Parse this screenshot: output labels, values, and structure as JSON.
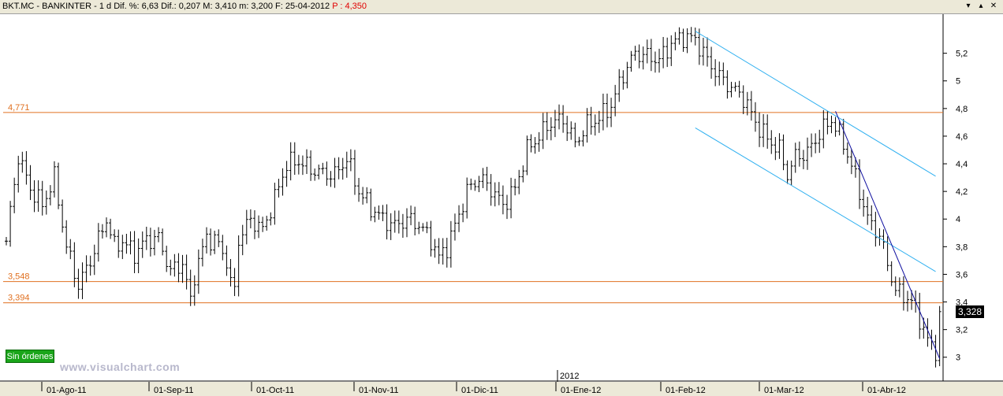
{
  "header": {
    "info": "BKT.MC - BANKINTER - 1 d Dif. %: 6,63 Dif.: 0,207 M: 3,410 m: 3,200 F: 25-04-2012",
    "price": "P : 4,350",
    "min_icon": "minimize-icon",
    "max_icon": "maximize-icon",
    "close_icon": "close-icon"
  },
  "badge": {
    "label": "Sin órdenes",
    "color": "#1aa51a"
  },
  "watermark": "www.visualchart.com",
  "chart_data": {
    "type": "ohlc",
    "symbol": "BKT.MC",
    "y_axis": {
      "ticks": [
        3,
        3.2,
        3.4,
        3.6,
        3.8,
        4,
        4.2,
        4.4,
        4.6,
        4.8,
        5,
        5.2
      ],
      "labels": [
        "3",
        "3,2",
        "3,4",
        "3,6",
        "3,8",
        "4",
        "4,2",
        "4,4",
        "4,6",
        "4,8",
        "5",
        "5,2"
      ],
      "range": [
        2.86,
        5.46
      ]
    },
    "x_axis": {
      "labels": [
        "01-Ago-11",
        "01-Sep-11",
        "01-Oct-11",
        "01-Nov-11",
        "01-Dic-11",
        "01-Ene-12",
        "01-Feb-12",
        "01-Mar-12",
        "01-Abr-12"
      ],
      "year_marker": "2012"
    },
    "last_value": {
      "label": "3,328",
      "value": 3.328
    },
    "horizontal_levels": [
      {
        "label": "4,771",
        "value": 4.771,
        "color": "#e07020"
      },
      {
        "label": "3,548",
        "value": 3.548,
        "color": "#e07020"
      },
      {
        "label": "3,394",
        "value": 3.394,
        "color": "#e07020"
      }
    ],
    "trend_lines": [
      {
        "name": "channel-upper",
        "from": [
          172,
          5.36
        ],
        "to": [
          232,
          4.31
        ],
        "color": "#30b0f0"
      },
      {
        "name": "channel-lower",
        "from": [
          172,
          4.66
        ],
        "to": [
          232,
          3.62
        ],
        "color": "#30b0f0"
      },
      {
        "name": "steep-down",
        "from": [
          207,
          4.78
        ],
        "to": [
          233,
          2.99
        ],
        "color": "#1010a0"
      }
    ],
    "price_path": [
      [
        0,
        3.84
      ],
      [
        3,
        4.46
      ],
      [
        6,
        4.22
      ],
      [
        9,
        4.1
      ],
      [
        12,
        4.3
      ],
      [
        15,
        3.8
      ],
      [
        18,
        3.52
      ],
      [
        21,
        3.7
      ],
      [
        25,
        4.0
      ],
      [
        27,
        3.8
      ],
      [
        29,
        3.84
      ],
      [
        32,
        3.75
      ],
      [
        35,
        3.85
      ],
      [
        38,
        3.86
      ],
      [
        41,
        3.62
      ],
      [
        44,
        3.68
      ],
      [
        46,
        3.4
      ],
      [
        47,
        3.6
      ],
      [
        50,
        3.87
      ],
      [
        53,
        3.82
      ],
      [
        55,
        3.7
      ],
      [
        56,
        3.52
      ],
      [
        57,
        3.5
      ],
      [
        58,
        3.85
      ],
      [
        61,
        4.0
      ],
      [
        64,
        3.92
      ],
      [
        67,
        4.15
      ],
      [
        70,
        4.4
      ],
      [
        73,
        4.42
      ],
      [
        76,
        4.36
      ],
      [
        79,
        4.33
      ],
      [
        82,
        4.32
      ],
      [
        85,
        4.44
      ],
      [
        88,
        4.2
      ],
      [
        91,
        4.08
      ],
      [
        94,
        4.0
      ],
      [
        97,
        3.95
      ],
      [
        100,
        4.0
      ],
      [
        103,
        3.96
      ],
      [
        106,
        3.85
      ],
      [
        108,
        3.72
      ],
      [
        110,
        3.8
      ],
      [
        112,
        3.95
      ],
      [
        115,
        4.2
      ],
      [
        118,
        4.3
      ],
      [
        121,
        4.22
      ],
      [
        124,
        4.1
      ],
      [
        127,
        4.22
      ],
      [
        130,
        4.5
      ],
      [
        133,
        4.6
      ],
      [
        136,
        4.7
      ],
      [
        139,
        4.72
      ],
      [
        142,
        4.55
      ],
      [
        145,
        4.68
      ],
      [
        148,
        4.73
      ],
      [
        151,
        4.82
      ],
      [
        154,
        5.05
      ],
      [
        157,
        5.2
      ],
      [
        160,
        5.18
      ],
      [
        163,
        5.15
      ],
      [
        166,
        5.27
      ],
      [
        169,
        5.32
      ],
      [
        172,
        5.3
      ],
      [
        175,
        5.15
      ],
      [
        178,
        5.03
      ],
      [
        181,
        4.95
      ],
      [
        184,
        4.88
      ],
      [
        187,
        4.7
      ],
      [
        190,
        4.58
      ],
      [
        193,
        4.5
      ],
      [
        195,
        4.32
      ],
      [
        197,
        4.45
      ],
      [
        200,
        4.48
      ],
      [
        203,
        4.62
      ],
      [
        206,
        4.72
      ],
      [
        209,
        4.55
      ],
      [
        212,
        4.3
      ],
      [
        215,
        4.0
      ],
      [
        218,
        3.88
      ],
      [
        220,
        3.68
      ],
      [
        222,
        3.48
      ],
      [
        224,
        3.45
      ],
      [
        226,
        3.4
      ],
      [
        228,
        3.28
      ],
      [
        230,
        3.12
      ],
      [
        232,
        3.05
      ],
      [
        233,
        3.33
      ]
    ]
  }
}
